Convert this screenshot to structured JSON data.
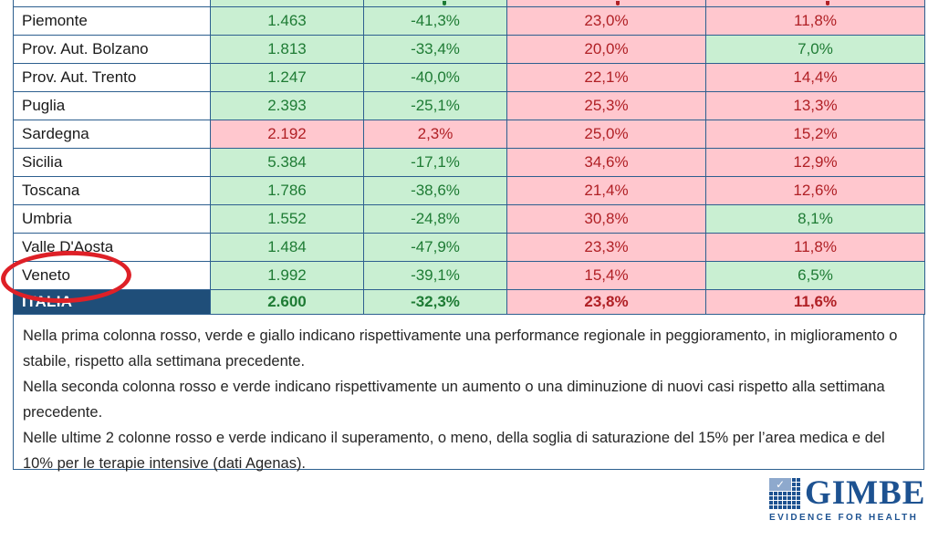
{
  "table": {
    "rows": [
      {
        "region": "",
        "values": [
          "",
          "",
          "",
          ""
        ],
        "states": [
          "good",
          "good",
          "bad",
          "bad"
        ],
        "is_partial": true
      },
      {
        "region": "Piemonte",
        "values": [
          "1.463",
          "-41,3%",
          "23,0%",
          "11,8%"
        ],
        "states": [
          "good",
          "good",
          "bad",
          "bad"
        ]
      },
      {
        "region": "Prov. Aut. Bolzano",
        "values": [
          "1.813",
          "-33,4%",
          "20,0%",
          "7,0%"
        ],
        "states": [
          "good",
          "good",
          "bad",
          "good"
        ]
      },
      {
        "region": "Prov. Aut. Trento",
        "values": [
          "1.247",
          "-40,0%",
          "22,1%",
          "14,4%"
        ],
        "states": [
          "good",
          "good",
          "bad",
          "bad"
        ]
      },
      {
        "region": "Puglia",
        "values": [
          "2.393",
          "-25,1%",
          "25,3%",
          "13,3%"
        ],
        "states": [
          "good",
          "good",
          "bad",
          "bad"
        ]
      },
      {
        "region": "Sardegna",
        "values": [
          "2.192",
          "2,3%",
          "25,0%",
          "15,2%"
        ],
        "states": [
          "bad",
          "bad",
          "bad",
          "bad"
        ]
      },
      {
        "region": "Sicilia",
        "values": [
          "5.384",
          "-17,1%",
          "34,6%",
          "12,9%"
        ],
        "states": [
          "good",
          "good",
          "bad",
          "bad"
        ]
      },
      {
        "region": "Toscana",
        "values": [
          "1.786",
          "-38,6%",
          "21,4%",
          "12,6%"
        ],
        "states": [
          "good",
          "good",
          "bad",
          "bad"
        ]
      },
      {
        "region": "Umbria",
        "values": [
          "1.552",
          "-24,8%",
          "30,8%",
          "8,1%"
        ],
        "states": [
          "good",
          "good",
          "bad",
          "good"
        ]
      },
      {
        "region": "Valle D'Aosta",
        "values": [
          "1.484",
          "-47,9%",
          "23,3%",
          "11,8%"
        ],
        "states": [
          "good",
          "good",
          "bad",
          "bad"
        ]
      },
      {
        "region": "Veneto",
        "values": [
          "1.992",
          "-39,1%",
          "15,4%",
          "6,5%"
        ],
        "states": [
          "good",
          "good",
          "bad",
          "good"
        ],
        "circled": true
      },
      {
        "region": "ITALIA",
        "values": [
          "2.600",
          "-32,3%",
          "23,8%",
          "11,6%"
        ],
        "states": [
          "good",
          "good",
          "bad",
          "bad"
        ],
        "is_total": true
      }
    ]
  },
  "annotation": {
    "type": "red-ellipse",
    "target": "Veneto"
  },
  "footnote": {
    "lines": [
      "Nella prima colonna rosso, verde e giallo indicano rispettivamente una performance regionale in peggioramento, in miglioramento o stabile, rispetto alla settimana precedente.",
      "Nella seconda colonna rosso e verde indicano rispettivamente un aumento o una diminuzione di nuovi casi rispetto alla settimana precedente.",
      "Nelle ultime 2 colonne rosso e verde indicano il superamento, o meno, della soglia di saturazione del 15% per l’area medica e del 10% per le terapie intensive (dati Agenas)."
    ]
  },
  "logo": {
    "brand": "GIMBE",
    "tagline": "EVIDENCE FOR HEALTH",
    "check_glyph": "✓"
  },
  "colors": {
    "green_bg": "#C9EFD2",
    "green_text": "#1E7B34",
    "red_bg": "#FFC7CE",
    "red_text": "#B02025",
    "navy": "#1F4E79",
    "border": "#2D5F8F",
    "logo_blue": "#1D5291",
    "annotation_red": "#DE2027"
  }
}
